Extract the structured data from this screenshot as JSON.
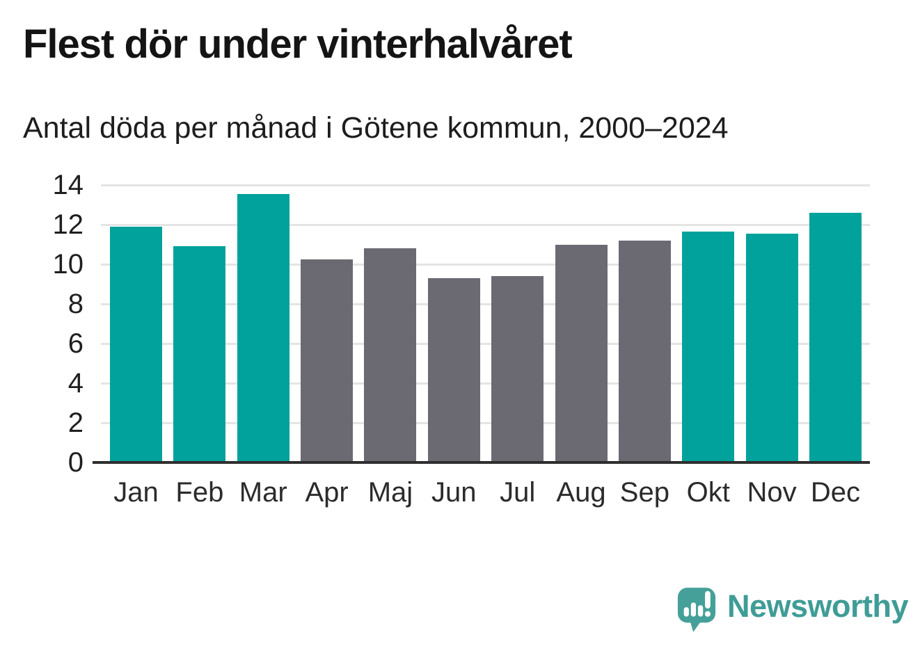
{
  "title": "Flest dör under vinterhalvåret",
  "subtitle": "Antal döda per månad i Götene kommun, 2000–2024",
  "colors": {
    "winter_bar": "#00a29b",
    "summer_bar": "#6b6a73",
    "grid": "#e4e4e4",
    "axis": "#2e2e2e",
    "logo_teal": "#46a09a"
  },
  "chart_data": {
    "type": "bar",
    "categories": [
      "Jan",
      "Feb",
      "Mar",
      "Apr",
      "Maj",
      "Jun",
      "Jul",
      "Aug",
      "Sep",
      "Okt",
      "Nov",
      "Dec"
    ],
    "values": [
      11.9,
      10.9,
      13.55,
      10.25,
      10.8,
      9.3,
      9.4,
      11.0,
      11.2,
      11.65,
      11.55,
      12.6
    ],
    "bar_palette": [
      "winter",
      "winter",
      "winter",
      "summer",
      "summer",
      "summer",
      "summer",
      "summer",
      "summer",
      "winter",
      "winter",
      "winter"
    ],
    "title": "Flest dör under vinterhalvåret",
    "subtitle": "Antal döda per månad i Götene kommun, 2000–2024",
    "xlabel": "",
    "ylabel": "",
    "ylim": [
      0,
      14
    ],
    "yticks": [
      0,
      2,
      4,
      6,
      8,
      10,
      12,
      14
    ],
    "grid": "horizontal-only",
    "legend": "none"
  },
  "branding": {
    "logo_text": "Newsworthy",
    "logo_icon": "newsworthy-speech-bubble-chart-icon"
  }
}
